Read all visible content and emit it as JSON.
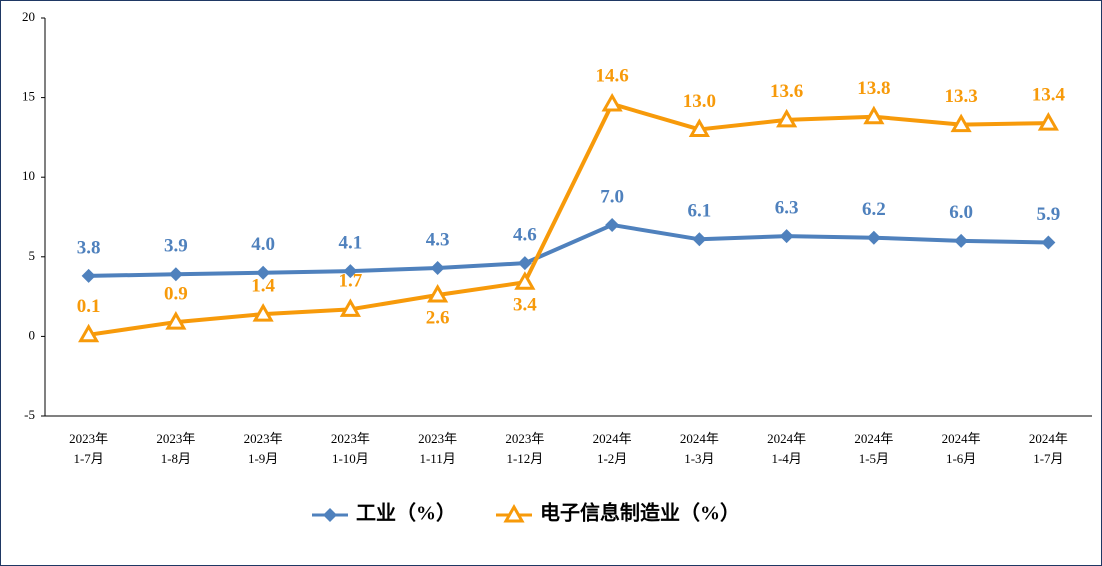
{
  "chart_data": {
    "type": "line",
    "categories": [
      [
        "2023年",
        "1-7月"
      ],
      [
        "2023年",
        "1-8月"
      ],
      [
        "2023年",
        "1-9月"
      ],
      [
        "2023年",
        "1-10月"
      ],
      [
        "2023年",
        "1-11月"
      ],
      [
        "2023年",
        "1-12月"
      ],
      [
        "2024年",
        "1-2月"
      ],
      [
        "2024年",
        "1-3月"
      ],
      [
        "2024年",
        "1-4月"
      ],
      [
        "2024年",
        "1-5月"
      ],
      [
        "2024年",
        "1-6月"
      ],
      [
        "2024年",
        "1-7月"
      ]
    ],
    "series": [
      {
        "name": "工业（%）",
        "color": "#4f81bd",
        "marker": "diamond",
        "values": [
          3.8,
          3.9,
          4.0,
          4.1,
          4.3,
          4.6,
          7.0,
          6.1,
          6.3,
          6.2,
          6.0,
          5.9
        ],
        "value_labels": [
          "3.8",
          "3.9",
          "4.0",
          "4.1",
          "4.3",
          "4.6",
          "7.0",
          "6.1",
          "6.3",
          "6.2",
          "6.0",
          "5.9"
        ]
      },
      {
        "name": "电子信息制造业（%）",
        "color": "#f79a0a",
        "marker": "triangle",
        "values": [
          0.1,
          0.9,
          1.4,
          1.7,
          2.6,
          3.4,
          14.6,
          13.0,
          13.6,
          13.8,
          13.3,
          13.4
        ],
        "value_labels": [
          "0.1",
          "0.9",
          "1.4",
          "1.7",
          "2.6",
          "3.4",
          "14.6",
          "13.0",
          "13.6",
          "13.8",
          "13.3",
          "13.4"
        ]
      }
    ],
    "ylim": [
      -5,
      20
    ],
    "yticks": [
      20,
      15,
      10,
      5,
      0,
      -5
    ],
    "grid": false,
    "legend": "bottom"
  }
}
